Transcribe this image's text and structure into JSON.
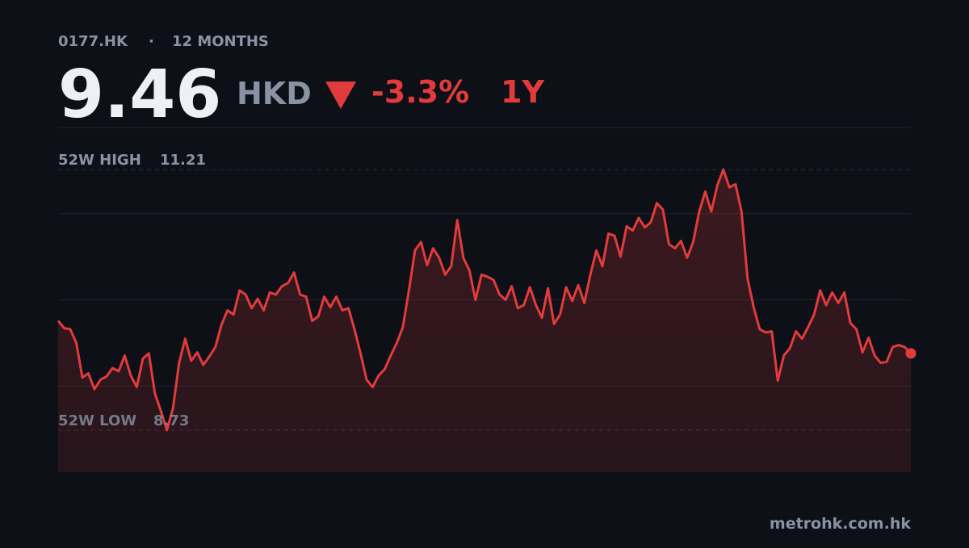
{
  "header": {
    "ticker": "0177.HK",
    "separator": "·",
    "period": "12 MONTHS",
    "currency": "HKD",
    "change": "-3.3%",
    "range": "1Y"
  },
  "chart_data": {
    "type": "line",
    "color": "#e23b3b",
    "values": [
      9.77,
      9.7,
      9.69,
      9.56,
      9.23,
      9.27,
      9.12,
      9.21,
      9.24,
      9.32,
      9.29,
      9.44,
      9.25,
      9.14,
      9.41,
      9.46,
      9.08,
      8.91,
      8.73,
      8.94,
      9.37,
      9.6,
      9.39,
      9.47,
      9.35,
      9.43,
      9.52,
      9.73,
      9.87,
      9.83,
      10.06,
      10.02,
      9.89,
      9.98,
      9.87,
      10.04,
      10.02,
      10.1,
      10.13,
      10.23,
      10.02,
      10.0,
      9.77,
      9.81,
      10.0,
      9.9,
      10.0,
      9.87,
      9.89,
      9.69,
      9.46,
      9.21,
      9.14,
      9.25,
      9.31,
      9.44,
      9.56,
      9.71,
      10.06,
      10.44,
      10.52,
      10.3,
      10.46,
      10.37,
      10.21,
      10.29,
      10.73,
      10.37,
      10.25,
      9.97,
      10.21,
      10.19,
      10.16,
      10.02,
      9.97,
      10.1,
      9.89,
      9.92,
      10.09,
      9.92,
      9.8,
      10.08,
      9.74,
      9.83,
      10.09,
      9.96,
      10.11,
      9.94,
      10.21,
      10.44,
      10.29,
      10.6,
      10.58,
      10.38,
      10.67,
      10.63,
      10.75,
      10.66,
      10.71,
      10.89,
      10.83,
      10.5,
      10.46,
      10.53,
      10.37,
      10.52,
      10.81,
      11.0,
      10.81,
      11.06,
      11.21,
      11.04,
      11.07,
      10.81,
      10.17,
      9.9,
      9.69,
      9.66,
      9.67,
      9.2,
      9.44,
      9.51,
      9.67,
      9.6,
      9.71,
      9.83,
      10.06,
      9.92,
      10.04,
      9.94,
      10.04,
      9.75,
      9.69,
      9.47,
      9.61,
      9.44,
      9.37,
      9.38,
      9.52,
      9.54,
      9.52,
      9.46
    ],
    "high_label": "52W HIGH",
    "high": 11.21,
    "low_label": "52W LOW",
    "low": 8.73,
    "ylim": [
      8.33,
      11.61
    ],
    "gridlines": [
      9.15,
      9.97,
      10.79,
      11.61
    ]
  },
  "footer": {
    "source": "metrohk.com.hk"
  }
}
